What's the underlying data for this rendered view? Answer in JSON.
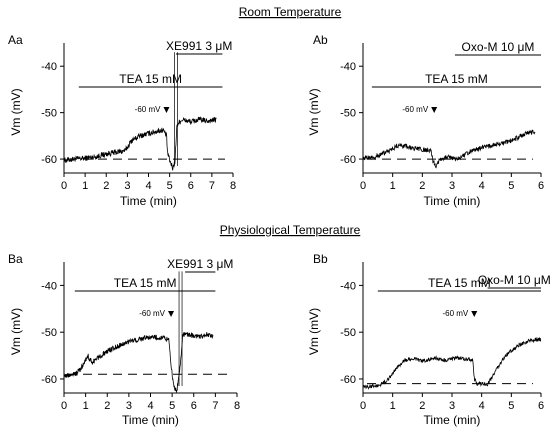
{
  "headings": {
    "top": "Room Temperature",
    "bottom": "Physiological Temperature"
  },
  "chart_data": [
    {
      "panel": "Aa",
      "type": "line",
      "xlabel": "Time (min)",
      "ylabel": "Vm (mV)",
      "xlim": [
        0,
        8
      ],
      "ylim": [
        -63,
        -35
      ],
      "xticks": [
        "0",
        "1",
        "2",
        "3",
        "4",
        "5",
        "6",
        "7",
        "8"
      ],
      "yticks": [
        "-40",
        "-50",
        "-60"
      ],
      "drug_bars": [
        {
          "label": "TEA 15 mM",
          "x0": 0.7,
          "x1": 7.5
        },
        {
          "label": "XE991 3 μM",
          "x0": 5.3,
          "x1": 7.5
        }
      ],
      "marker": {
        "label": "-60 mV",
        "x": 4.85
      },
      "baseline": -60,
      "points": [
        [
          0,
          -60.3
        ],
        [
          0.5,
          -60
        ],
        [
          1,
          -59.8
        ],
        [
          1.5,
          -59.5
        ],
        [
          2,
          -58.9
        ],
        [
          2.5,
          -58.5
        ],
        [
          2.9,
          -58.2
        ],
        [
          3.2,
          -56
        ],
        [
          3.6,
          -55
        ],
        [
          4,
          -54.5
        ],
        [
          4.4,
          -54
        ],
        [
          4.7,
          -53.7
        ],
        [
          4.85,
          -55
        ],
        [
          4.9,
          -58.5
        ],
        [
          5,
          -60.3
        ],
        [
          5.15,
          -62
        ],
        [
          5.25,
          -60.5
        ],
        [
          5.35,
          -52.5
        ],
        [
          5.6,
          -51.5
        ],
        [
          6,
          -52
        ],
        [
          6.4,
          -51.5
        ],
        [
          6.8,
          -51.8
        ],
        [
          7.2,
          -51.5
        ]
      ],
      "noise": 0.6
    },
    {
      "panel": "Ab",
      "type": "line",
      "xlabel": "Time (min)",
      "ylabel": "Vm (mV)",
      "xlim": [
        0,
        6
      ],
      "ylim": [
        -63,
        -35
      ],
      "xticks": [
        "0",
        "1",
        "2",
        "3",
        "4",
        "5",
        "6"
      ],
      "yticks": [
        "-40",
        "-50",
        "-60"
      ],
      "drug_bars": [
        {
          "label": "TEA 15 mM",
          "x0": 0.3,
          "x1": 6
        },
        {
          "label": "Oxo-M 10 μM",
          "x0": 3.1,
          "x1": 6
        }
      ],
      "marker": {
        "label": "-60 mV",
        "x": 2.4
      },
      "baseline": -60,
      "points": [
        [
          0,
          -59.8
        ],
        [
          0.4,
          -59.5
        ],
        [
          0.8,
          -58.5
        ],
        [
          1.2,
          -57
        ],
        [
          1.6,
          -57.5
        ],
        [
          2,
          -58
        ],
        [
          2.3,
          -58.3
        ],
        [
          2.35,
          -60.2
        ],
        [
          2.45,
          -61.5
        ],
        [
          2.6,
          -60
        ],
        [
          2.8,
          -59.5
        ],
        [
          3.2,
          -60
        ],
        [
          3.6,
          -58.5
        ],
        [
          4,
          -57.5
        ],
        [
          4.5,
          -57
        ],
        [
          5,
          -56
        ],
        [
          5.5,
          -54.5
        ],
        [
          5.8,
          -54
        ]
      ],
      "noise": 0.5
    },
    {
      "panel": "Ba",
      "type": "line",
      "xlabel": "Time (min)",
      "ylabel": "Vm (mV)",
      "xlim": [
        0,
        8
      ],
      "ylim": [
        -63,
        -35
      ],
      "xticks": [
        "0",
        "1",
        "2",
        "3",
        "4",
        "5",
        "6",
        "7",
        "8"
      ],
      "yticks": [
        "-40",
        "-50",
        "-60"
      ],
      "drug_bars": [
        {
          "label": "TEA 15 mM",
          "x0": 0.5,
          "x1": 7
        },
        {
          "label": "XE991 3 μM",
          "x0": 5.6,
          "x1": 7
        }
      ],
      "marker": {
        "label": "-60 mV",
        "x": 4.95
      },
      "baseline": -59,
      "points": [
        [
          0,
          -59.5
        ],
        [
          0.6,
          -58.8
        ],
        [
          0.9,
          -57
        ],
        [
          1.1,
          -55
        ],
        [
          1.3,
          -56.5
        ],
        [
          1.7,
          -55
        ],
        [
          2,
          -54
        ],
        [
          2.5,
          -53
        ],
        [
          3,
          -52
        ],
        [
          3.5,
          -51.5
        ],
        [
          4,
          -51
        ],
        [
          4.5,
          -51.2
        ],
        [
          4.85,
          -51.5
        ],
        [
          4.95,
          -57
        ],
        [
          5.05,
          -61
        ],
        [
          5.2,
          -63
        ],
        [
          5.35,
          -58
        ],
        [
          5.5,
          -50.5
        ],
        [
          5.8,
          -50.5
        ],
        [
          6.2,
          -51
        ],
        [
          6.6,
          -50.5
        ],
        [
          6.9,
          -51
        ]
      ],
      "noise": 0.55
    },
    {
      "panel": "Bb",
      "type": "line",
      "xlabel": "Time (min)",
      "ylabel": "Vm (mV)",
      "xlim": [
        0,
        6
      ],
      "ylim": [
        -63,
        -35
      ],
      "xticks": [
        "0",
        "1",
        "2",
        "3",
        "4",
        "5",
        "6"
      ],
      "yticks": [
        "-40",
        "-50",
        "-60"
      ],
      "drug_bars": [
        {
          "label": "TEA 15 mM",
          "x0": 0.5,
          "x1": 6
        },
        {
          "label": "Oxo-M 10 μM",
          "x0": 4.2,
          "x1": 6
        }
      ],
      "marker": {
        "label": "-60 mV",
        "x": 3.75
      },
      "baseline": -61,
      "points": [
        [
          0,
          -61.8
        ],
        [
          0.5,
          -61.5
        ],
        [
          0.8,
          -60.5
        ],
        [
          1.1,
          -58
        ],
        [
          1.4,
          -56
        ],
        [
          1.7,
          -55.5
        ],
        [
          2,
          -56.2
        ],
        [
          2.4,
          -55.5
        ],
        [
          2.8,
          -56
        ],
        [
          3.2,
          -55.5
        ],
        [
          3.6,
          -55.8
        ],
        [
          3.7,
          -56
        ],
        [
          3.75,
          -60
        ],
        [
          3.85,
          -61
        ],
        [
          4,
          -61
        ],
        [
          4.2,
          -61.2
        ],
        [
          4.5,
          -58
        ],
        [
          4.8,
          -55
        ],
        [
          5.2,
          -53
        ],
        [
          5.5,
          -52
        ],
        [
          6,
          -51.5
        ]
      ],
      "noise": 0.4
    }
  ]
}
